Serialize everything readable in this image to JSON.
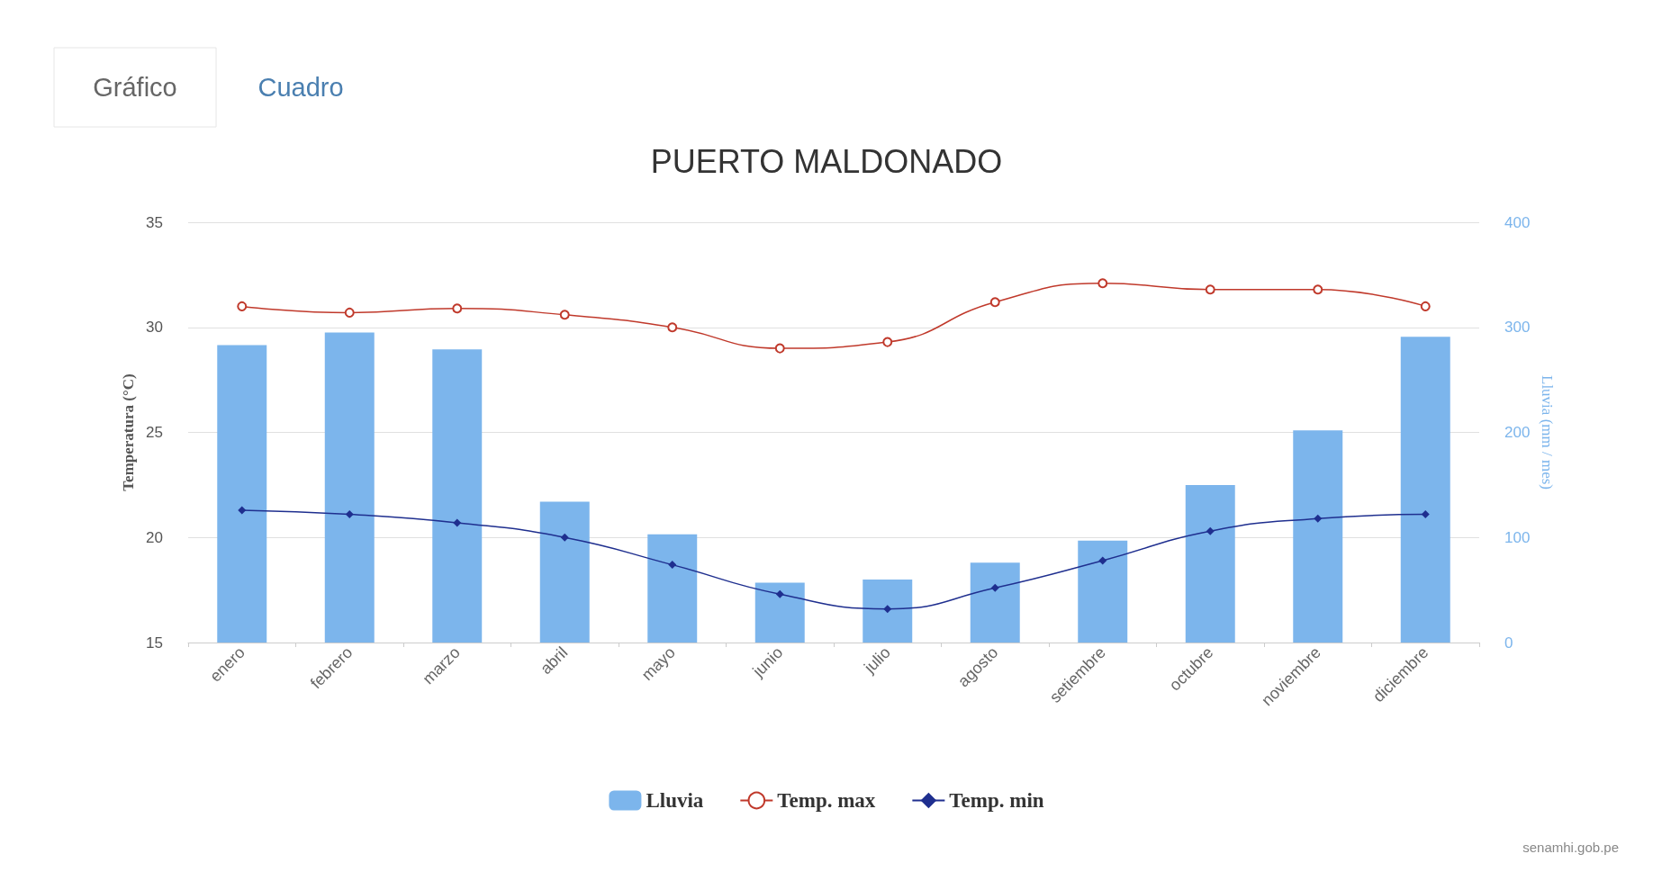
{
  "chart_data": {
    "type": "bar",
    "title": "PUERTO MALDONADO",
    "ylabel": "Temperatura (°C)",
    "y2label": "Lluvia (mm / mes)",
    "categories": [
      "enero",
      "febrero",
      "marzo",
      "abril",
      "mayo",
      "junio",
      "julio",
      "agosto",
      "setiembre",
      "octubre",
      "noviembre",
      "diciembre"
    ],
    "series": [
      {
        "name": "Lluvia",
        "axis": "y2",
        "color": "#7cb5ec",
        "values": [
          283,
          295,
          279,
          134,
          103,
          57,
          60,
          76,
          97,
          150,
          202,
          291
        ]
      },
      {
        "name": "Temp. max",
        "type": "line",
        "color": "#c0392b",
        "marker": "circle",
        "values": [
          31.0,
          30.7,
          30.9,
          30.6,
          30.0,
          29.0,
          29.3,
          31.2,
          32.1,
          31.8,
          31.8,
          31.0
        ]
      },
      {
        "name": "Temp. min",
        "type": "line",
        "color": "#1f2f8f",
        "marker": "diamond",
        "values": [
          21.3,
          21.1,
          20.7,
          20.0,
          18.7,
          17.3,
          16.6,
          17.6,
          18.9,
          20.3,
          20.9,
          21.1
        ]
      }
    ],
    "ylim": [
      15,
      35
    ],
    "yticks": [
      15,
      20,
      25,
      30,
      35
    ],
    "y2lim": [
      0,
      400
    ],
    "y2ticks": [
      0,
      100,
      200,
      300,
      400
    ],
    "grid": "y",
    "legend": "bottom",
    "annotations": [
      "Gráfico",
      "Cuadro",
      "senamhi.gob.pe"
    ]
  }
}
